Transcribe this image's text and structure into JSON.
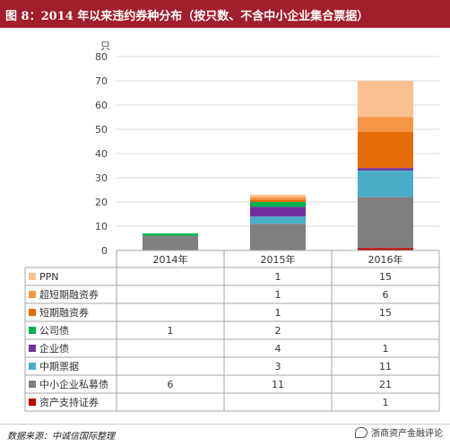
{
  "header": {
    "title": "图 8：2014 年以来违约券种分布（按只数、不含中小企业集合票据）"
  },
  "footer": {
    "source": "数据来源：中诚信国际整理",
    "watermark": "浙商资产金融评论"
  },
  "chart_data": {
    "type": "bar",
    "stacked": true,
    "ylabel": "只",
    "ylim": [
      0,
      80
    ],
    "yticks": [
      0,
      10,
      20,
      30,
      40,
      50,
      60,
      70,
      80
    ],
    "grid": true,
    "categories": [
      "2014年",
      "2015年",
      "2016年"
    ],
    "legend_position": "data-table",
    "series": [
      {
        "name": "资产支持证券",
        "color": "#c00000",
        "values": [
          null,
          null,
          1
        ]
      },
      {
        "name": "中小企业私募债",
        "color": "#7f7f7f",
        "values": [
          6,
          11,
          21
        ]
      },
      {
        "name": "中期票据",
        "color": "#4bacc6",
        "values": [
          null,
          3,
          11
        ]
      },
      {
        "name": "企业债",
        "color": "#7030a0",
        "values": [
          null,
          4,
          1
        ]
      },
      {
        "name": "公司债",
        "color": "#00b050",
        "values": [
          1,
          2,
          null
        ]
      },
      {
        "name": "短期融资券",
        "color": "#e36c09",
        "values": [
          null,
          1,
          15
        ]
      },
      {
        "name": "超短期融资券",
        "color": "#f79646",
        "values": [
          null,
          1,
          6
        ]
      },
      {
        "name": "PPN",
        "color": "#fac090",
        "values": [
          null,
          1,
          15
        ]
      }
    ]
  }
}
